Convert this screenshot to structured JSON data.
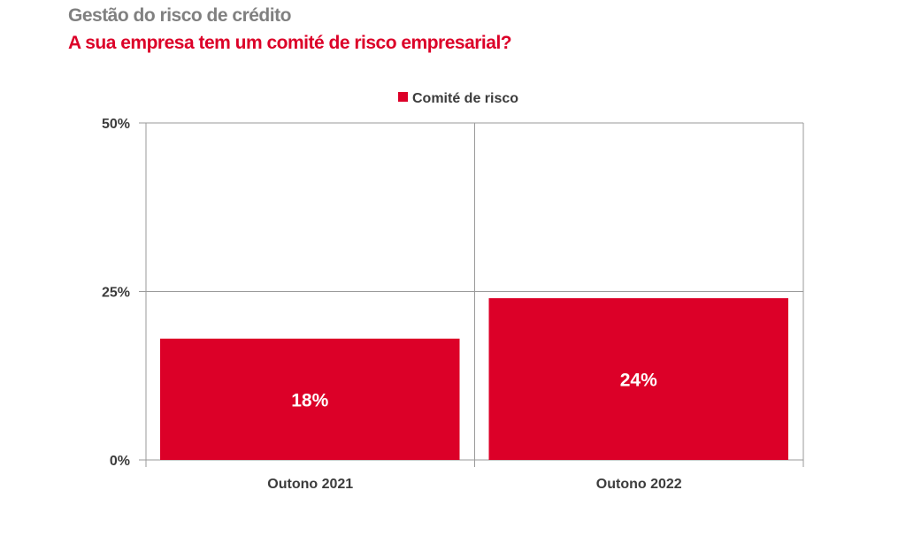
{
  "header": {
    "title": "Gestão do risco de crédito",
    "subtitle": "A sua empresa tem um comité de risco empresarial?"
  },
  "chart_data": {
    "type": "bar",
    "title": "A sua empresa tem um comité de risco empresarial?",
    "categories": [
      "Outono 2021",
      "Outono 2022"
    ],
    "series": [
      {
        "name": "Comité de risco",
        "values": [
          18,
          24
        ],
        "color": "#dc0028"
      }
    ],
    "data_labels": [
      "18%",
      "24%"
    ],
    "ylim": [
      0,
      50
    ],
    "yticks": [
      0,
      25,
      50
    ],
    "ytick_labels": [
      "0%",
      "25%",
      "50%"
    ],
    "legend_position": "top-center",
    "grid": true
  }
}
